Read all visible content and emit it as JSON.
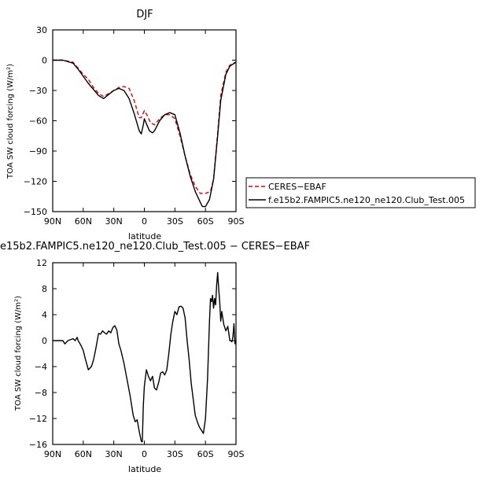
{
  "chart_data": [
    {
      "type": "line",
      "title": "DJF",
      "xlabel": "latitude",
      "ylabel": "TOA SW cloud forcing (W/m²)",
      "xlim": [
        90,
        -90
      ],
      "ylim": [
        -150,
        30
      ],
      "x_ticks": [
        90,
        60,
        30,
        0,
        -30,
        -60,
        -90
      ],
      "x_tick_labels": [
        "90N",
        "60N",
        "30N",
        "0",
        "30S",
        "60S",
        "90S"
      ],
      "y_ticks": [
        30,
        0,
        -30,
        -60,
        -90,
        -120,
        -150
      ],
      "y_tick_labels": [
        "30",
        "0",
        "−30",
        "−60",
        "−90",
        "−120",
        "−150"
      ],
      "legend_position": "right",
      "series": [
        {
          "name": "CERES−EBAF",
          "color": "#e00000",
          "dash": true,
          "x": [
            90,
            80,
            70,
            65,
            60,
            55,
            50,
            45,
            40,
            35,
            30,
            25,
            20,
            15,
            10,
            5,
            3,
            0,
            -3,
            -6,
            -10,
            -15,
            -20,
            -25,
            -30,
            -35,
            -40,
            -45,
            -50,
            -55,
            -60,
            -65,
            -68,
            -72,
            -75,
            -80,
            -84,
            -87,
            -90
          ],
          "y": [
            0,
            0,
            -2,
            -8,
            -14,
            -19,
            -27,
            -33,
            -36,
            -33,
            -30,
            -27,
            -26,
            -28,
            -40,
            -57,
            -57,
            -50,
            -55,
            -62,
            -64,
            -58,
            -54,
            -54,
            -58,
            -75,
            -95,
            -113,
            -125,
            -132,
            -132,
            -130,
            -118,
            -72,
            -35,
            -12,
            -5,
            -3,
            -2
          ]
        },
        {
          "name": "f.e15b2.FAMPIC5.ne120_ne120.Club_Test.005",
          "color": "#000000",
          "dash": false,
          "x": [
            90,
            80,
            70,
            65,
            60,
            55,
            50,
            45,
            40,
            35,
            30,
            25,
            20,
            15,
            10,
            5,
            3,
            1,
            0,
            -2,
            -5,
            -8,
            -10,
            -15,
            -20,
            -25,
            -30,
            -35,
            -40,
            -45,
            -50,
            -55,
            -57,
            -60,
            -64,
            -68,
            -72,
            -75,
            -80,
            -84,
            -87,
            -90
          ],
          "y": [
            0,
            0,
            -3,
            -9,
            -16,
            -23,
            -29,
            -35,
            -38,
            -34,
            -30,
            -28,
            -30,
            -38,
            -53,
            -70,
            -73,
            -64,
            -58,
            -63,
            -70,
            -72,
            -70,
            -60,
            -54,
            -52,
            -54,
            -72,
            -95,
            -115,
            -130,
            -141,
            -145,
            -145,
            -138,
            -118,
            -75,
            -40,
            -14,
            -6,
            -4,
            -2
          ]
        }
      ]
    },
    {
      "type": "line",
      "title": "e15b2.FAMPIC5.ne120_ne120.Club_Test.005 − CERES−EBAF",
      "xlabel": "latitude",
      "ylabel": "TOA SW cloud forcing (W/m²)",
      "xlim": [
        90,
        -90
      ],
      "ylim": [
        -16,
        12
      ],
      "x_ticks": [
        90,
        60,
        30,
        0,
        -30,
        -60,
        -90
      ],
      "x_tick_labels": [
        "90N",
        "60N",
        "30N",
        "0",
        "30S",
        "60S",
        "90S"
      ],
      "y_ticks": [
        12,
        8,
        4,
        0,
        -4,
        -8,
        -12,
        -16
      ],
      "y_tick_labels": [
        "12",
        "8",
        "4",
        "0",
        "−4",
        "−8",
        "−12",
        "−16"
      ],
      "series": [
        {
          "name": "",
          "color": "#000000",
          "dash": false,
          "x": [
            90,
            80,
            78,
            75,
            70,
            68,
            66,
            65,
            62,
            60,
            58,
            55,
            52,
            50,
            48,
            45,
            43,
            41,
            39,
            37,
            35,
            33,
            31,
            29,
            27,
            25,
            23,
            20,
            17,
            14,
            11,
            9,
            7,
            5,
            3,
            2,
            1,
            0,
            -2,
            -4,
            -6,
            -8,
            -10,
            -12,
            -14,
            -16,
            -18,
            -20,
            -22,
            -24,
            -26,
            -28,
            -30,
            -32,
            -34,
            -36,
            -38,
            -40,
            -42,
            -44,
            -46,
            -48,
            -50,
            -52,
            -54,
            -56,
            -58,
            -60,
            -62,
            -64,
            -65,
            -66,
            -67,
            -68,
            -69,
            -70,
            -71,
            -72,
            -73,
            -74,
            -75,
            -76,
            -78,
            -80,
            -82,
            -84,
            -85,
            -86,
            -87,
            -88,
            -89,
            -90
          ],
          "y": [
            0,
            0,
            -0.5,
            0,
            0.3,
            0,
            0.5,
            0,
            -0.8,
            -1.5,
            -2.8,
            -4.5,
            -4,
            -3,
            -1.5,
            1.1,
            1,
            1.5,
            1.2,
            1,
            1.5,
            1.2,
            2,
            2.3,
            1.6,
            -0.5,
            -1.5,
            -3.5,
            -6,
            -8.5,
            -11.5,
            -12.5,
            -12.2,
            -14,
            -15.5,
            -15.6,
            -10,
            -7,
            -4.5,
            -5.5,
            -6.2,
            -5.5,
            -7.3,
            -7.6,
            -6.5,
            -5,
            -4.8,
            -5.3,
            -4.5,
            -2,
            1,
            3,
            4.5,
            4,
            5.2,
            5.3,
            5,
            3.5,
            0,
            -3,
            -6.5,
            -9,
            -11.5,
            -12.5,
            -13.3,
            -13.8,
            -14.3,
            -12,
            -6,
            3,
            6.5,
            6,
            7,
            5,
            6.5,
            5.5,
            8.5,
            10.5,
            8,
            6,
            3,
            4.5,
            2.5,
            1.5,
            2.2,
            0,
            0,
            -0.2,
            0.6,
            2.6,
            -0.5,
            0
          ]
        }
      ]
    }
  ]
}
